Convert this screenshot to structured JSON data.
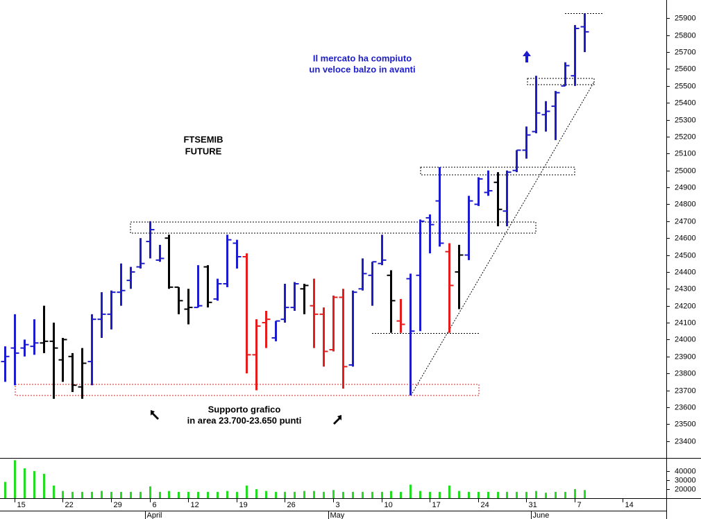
{
  "chart_data": {
    "type": "ohlc",
    "annotations": [
      [
        "FTSEMIB",
        "FUTURE"
      ],
      [
        "Il mercato ha compiuto",
        "un veloce balzo in avanti"
      ],
      [
        "Supporto grafico",
        "in area 23.700-23.650 punti"
      ]
    ],
    "xlim": [
      -0.5,
      68.5
    ],
    "xticks": [
      {
        "value": 1,
        "label": "15"
      },
      {
        "value": 6,
        "label": "22"
      },
      {
        "value": 11,
        "label": "29"
      },
      {
        "value": 15,
        "label": "6"
      },
      {
        "value": 19,
        "label": "12"
      },
      {
        "value": 24,
        "label": "19"
      },
      {
        "value": 29,
        "label": "26"
      },
      {
        "value": 34,
        "label": "3"
      },
      {
        "value": 39,
        "label": "10"
      },
      {
        "value": 44,
        "label": "17"
      },
      {
        "value": 49,
        "label": "24"
      },
      {
        "value": 54,
        "label": "31"
      },
      {
        "value": 59,
        "label": "7"
      },
      {
        "value": 64,
        "label": "14"
      }
    ],
    "month_ticks": [
      {
        "value": 15,
        "label": "April"
      },
      {
        "value": 34,
        "label": "May"
      },
      {
        "value": 55,
        "label": "June"
      }
    ],
    "ylim": [
      23300,
      26000
    ],
    "yticks": [
      23400,
      23500,
      23600,
      23700,
      23800,
      23900,
      24000,
      24100,
      24200,
      24300,
      24400,
      24500,
      24600,
      24700,
      24800,
      24900,
      25000,
      25100,
      25200,
      25300,
      25400,
      25500,
      25600,
      25700,
      25800,
      25900
    ],
    "series": [
      {
        "open": [
          23870,
          23950,
          23950,
          23960,
          23980,
          23990,
          23880,
          23900,
          23720,
          23870,
          24120,
          24150,
          24280,
          24350,
          24430,
          24580,
          24470,
          24600,
          24310,
          24180,
          24190,
          24430,
          24240,
          24330,
          24570,
          24490,
          23910,
          24100,
          24010,
          24120,
          24190,
          24300,
          24200,
          24150,
          23940,
          24250,
          23850,
          24300,
          24380,
          24450,
          24380,
          24110,
          24360,
          24380,
          24720,
          24820,
          24520,
          24400,
          24500,
          24800,
          24870,
          24930,
          24760,
          25000,
          25120,
          25230,
          25330,
          25380,
          25500,
          25560,
          25850
        ],
        "high": [
          23960,
          24150,
          24000,
          24120,
          24200,
          24100,
          24010,
          23920,
          23950,
          24150,
          24280,
          24290,
          24450,
          24430,
          24600,
          24700,
          24560,
          24620,
          24310,
          24300,
          24440,
          24440,
          24360,
          24620,
          24590,
          24510,
          24120,
          24170,
          24110,
          24330,
          24340,
          24330,
          24360,
          24190,
          24260,
          24300,
          24290,
          24480,
          24460,
          24620,
          24410,
          24240,
          24390,
          24710,
          24740,
          25020,
          24570,
          24560,
          24850,
          24960,
          25000,
          24990,
          25000,
          25120,
          25260,
          25560,
          25410,
          25470,
          25640,
          25860,
          25930
        ],
        "low": [
          23750,
          23730,
          23900,
          23910,
          23920,
          23650,
          23750,
          23690,
          23650,
          23730,
          24010,
          24060,
          24200,
          24300,
          24420,
          24480,
          24460,
          24300,
          24150,
          24090,
          24190,
          24190,
          24230,
          24310,
          24420,
          23800,
          23700,
          23950,
          23990,
          24100,
          24170,
          24150,
          23950,
          23840,
          23930,
          23710,
          23840,
          24290,
          24200,
          24440,
          24040,
          24040,
          23670,
          24050,
          24510,
          24550,
          24040,
          24180,
          24470,
          24790,
          24850,
          24670,
          24670,
          24990,
          25070,
          25220,
          25230,
          25180,
          25500,
          25500,
          25700
        ],
        "close": [
          23900,
          23920,
          23970,
          23980,
          23990,
          23950,
          24000,
          23730,
          23860,
          24120,
          24150,
          24280,
          24290,
          24400,
          24450,
          24650,
          24480,
          24310,
          24230,
          24190,
          24200,
          24220,
          24330,
          24590,
          24490,
          23910,
          24080,
          24120,
          24110,
          24190,
          24330,
          24320,
          24150,
          23930,
          24250,
          23840,
          24280,
          24390,
          24460,
          24470,
          24230,
          24090,
          24050,
          24700,
          24680,
          24570,
          24320,
          24500,
          24820,
          24950,
          24880,
          24770,
          24990,
          25120,
          25210,
          25340,
          25350,
          25460,
          25620,
          25840,
          25820
        ],
        "colors": [
          "#1c1ccc",
          "#1c1ccc",
          "#1c1ccc",
          "#1c1ccc",
          "#000000",
          "#000000",
          "#000000",
          "#000000",
          "#000000",
          "#1c1ccc",
          "#1c1ccc",
          "#1c1ccc",
          "#1c1ccc",
          "#1c1ccc",
          "#1c1ccc",
          "#1c1ccc",
          "#1c1ccc",
          "#000000",
          "#000000",
          "#000000",
          "#1c1ccc",
          "#000000",
          "#1c1ccc",
          "#1c1ccc",
          "#1c1ccc",
          "#e41c1c",
          "#e41c1c",
          "#e41c1c",
          "#1c1ccc",
          "#1c1ccc",
          "#1c1ccc",
          "#000000",
          "#e41c1c",
          "#e41c1c",
          "#e41c1c",
          "#e41c1c",
          "#1c1ccc",
          "#1c1ccc",
          "#1c1ccc",
          "#1c1ccc",
          "#000000",
          "#e41c1c",
          "#1c1ccc",
          "#1c1ccc",
          "#1c1ccc",
          "#1c1ccc",
          "#e41c1c",
          "#000000",
          "#1c1ccc",
          "#1c1ccc",
          "#1c1ccc",
          "#000000",
          "#1c1ccc",
          "#1c1ccc",
          "#1c1ccc",
          "#1c1ccc",
          "#1c1ccc",
          "#1c1ccc",
          "#1c1ccc",
          "#1c1ccc",
          "#1c1ccc"
        ]
      }
    ],
    "volume": {
      "color": "#22dd22",
      "ylim": [
        10000,
        53000
      ],
      "yticks": [
        20000,
        30000,
        40000
      ],
      "values": [
        28000,
        52000,
        43000,
        40000,
        37000,
        24000,
        18000,
        17000,
        17000,
        17000,
        18000,
        17000,
        17000,
        17000,
        17000,
        23000,
        17000,
        18000,
        17000,
        17000,
        17000,
        17000,
        17000,
        18000,
        17000,
        24000,
        20000,
        18000,
        17000,
        17000,
        17000,
        18000,
        18000,
        17000,
        19000,
        17000,
        17000,
        17000,
        17000,
        17000,
        18000,
        17000,
        25000,
        18000,
        17000,
        17000,
        24000,
        18000,
        17000,
        17000,
        17000,
        17000,
        17000,
        17000,
        17000,
        18000,
        16000,
        17000,
        17000,
        20000,
        19000
      ]
    }
  }
}
